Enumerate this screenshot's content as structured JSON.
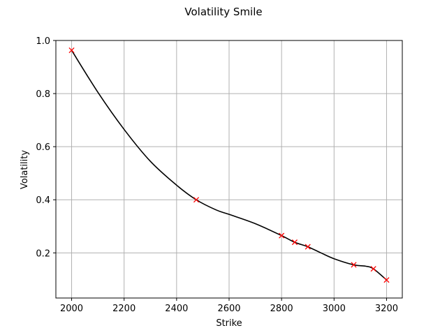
{
  "chart_data": {
    "type": "line",
    "title": "Volatility Smile",
    "xlabel": "Strike",
    "ylabel": "Volatility",
    "xlim": [
      1940,
      3260
    ],
    "ylim": [
      0.03,
      1.0
    ],
    "xticks": [
      2000,
      2200,
      2400,
      2600,
      2800,
      3000,
      3200
    ],
    "yticks": [
      0.2,
      0.4,
      0.6,
      0.8,
      1.0
    ],
    "grid": true,
    "series": [
      {
        "kind": "line",
        "color": "#000000",
        "x": [
          2000,
          2100,
          2200,
          2300,
          2400,
          2475,
          2550,
          2600,
          2700,
          2800,
          2850,
          2900,
          2950,
          3000,
          3075,
          3120,
          3150,
          3200
        ],
        "y": [
          0.963,
          0.805,
          0.665,
          0.545,
          0.455,
          0.4,
          0.362,
          0.345,
          0.31,
          0.265,
          0.24,
          0.223,
          0.2,
          0.178,
          0.155,
          0.15,
          0.14,
          0.098
        ]
      },
      {
        "kind": "markers",
        "marker": "x",
        "color": "#ff0000",
        "x": [
          2000,
          2475,
          2800,
          2850,
          2900,
          3075,
          3150,
          3200
        ],
        "y": [
          0.963,
          0.4,
          0.265,
          0.24,
          0.223,
          0.155,
          0.14,
          0.098
        ]
      }
    ]
  }
}
